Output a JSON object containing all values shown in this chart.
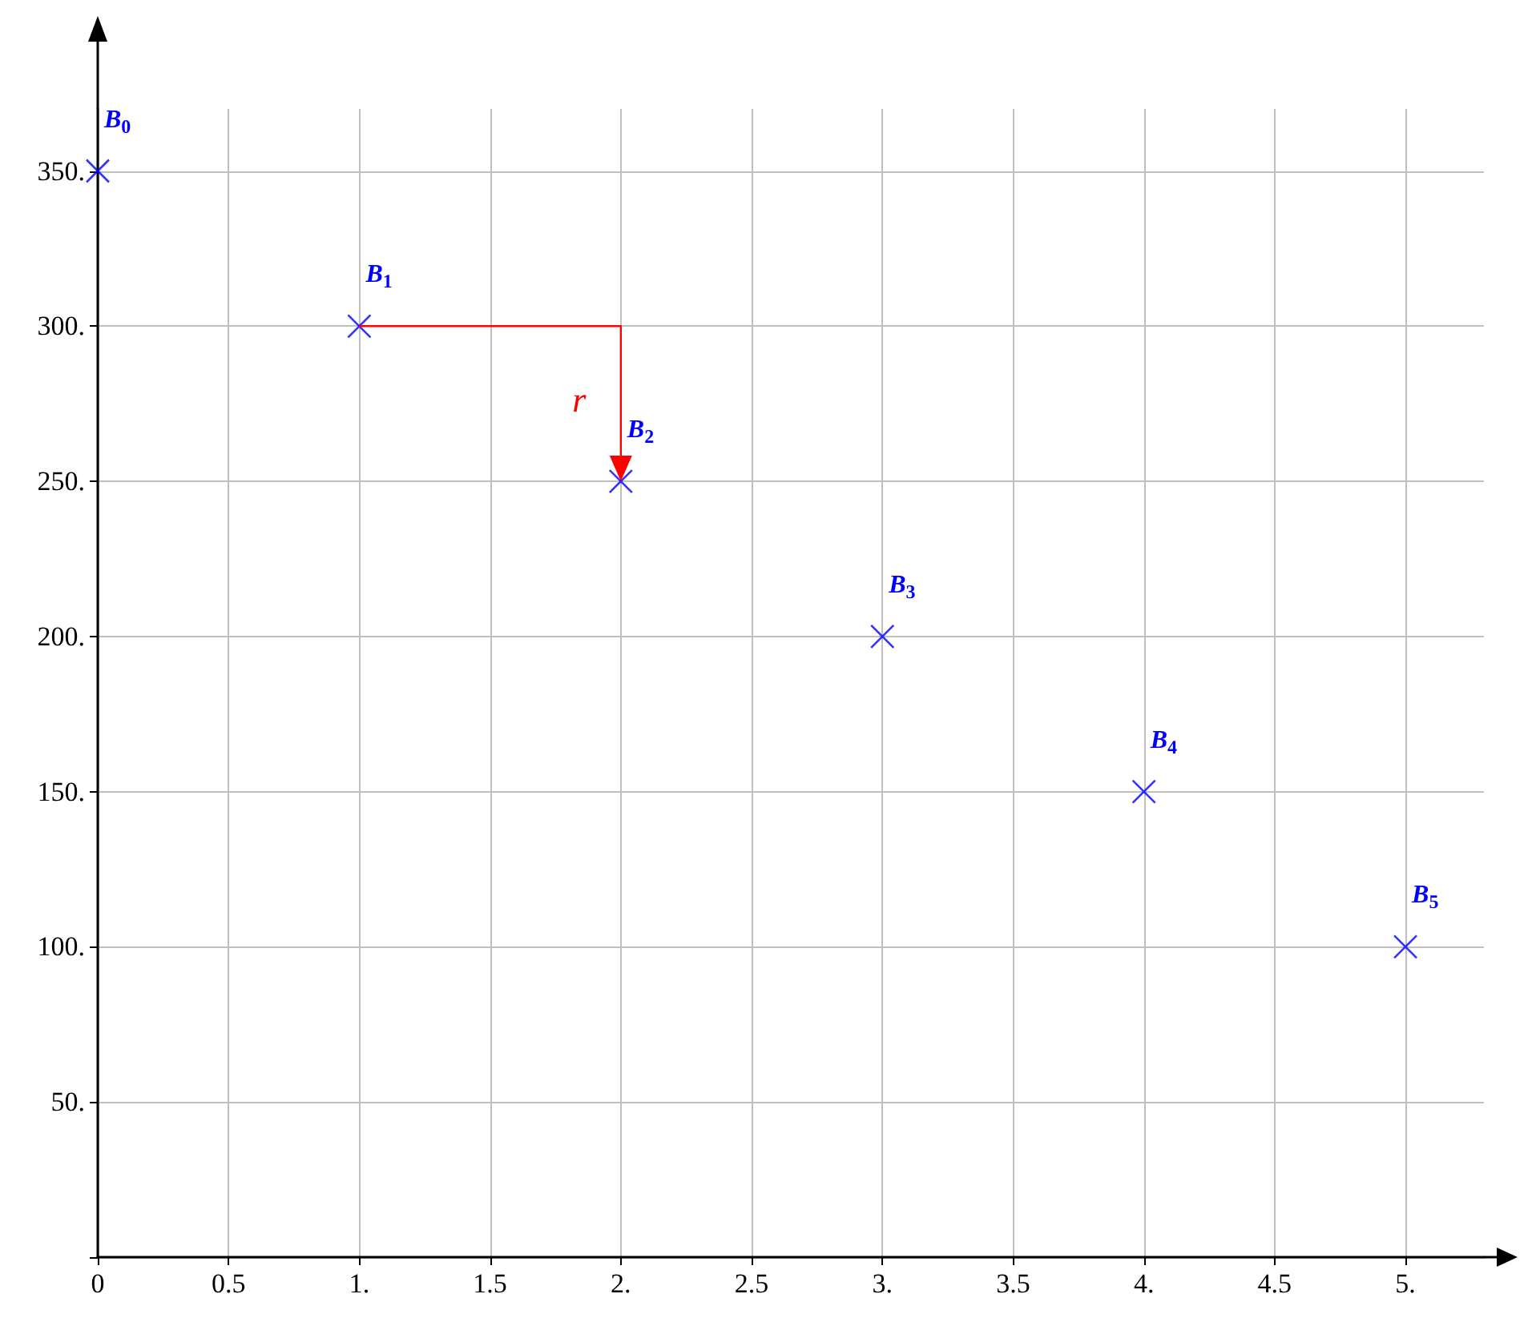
{
  "chart_data": {
    "type": "scatter",
    "x": [
      0,
      1,
      2,
      3,
      4,
      5
    ],
    "series": [
      {
        "color": "#0000ff",
        "marker": "cross",
        "values": [
          350,
          300,
          250,
          200,
          150,
          100
        ]
      }
    ],
    "annotations": [
      {
        "text": "B$_{0}$",
        "x": 0,
        "y": 350
      },
      {
        "text": "B$_{1}$",
        "x": 1,
        "y": 300
      },
      {
        "text": "B$_{2}$",
        "x": 2,
        "y": 250
      },
      {
        "text": "B$_{3}$",
        "x": 3,
        "y": 200
      },
      {
        "text": "B$_{4}$",
        "x": 4,
        "y": 150
      },
      {
        "text": "B$_{5}$",
        "x": 5,
        "y": 100
      },
      "r"
    ],
    "xlim": [
      0,
      5.3
    ],
    "ylim": [
      0,
      370
    ],
    "xticks": [
      {
        "value": 0,
        "label": "0"
      },
      0.5,
      {
        "value": 1,
        "label": "1."
      },
      1.5,
      {
        "value": 2,
        "label": "2."
      },
      2.5,
      {
        "value": 3,
        "label": "3."
      },
      3.5,
      {
        "value": 4,
        "label": "4."
      },
      4.5,
      {
        "value": 5,
        "label": "5."
      }
    ],
    "yticks": [
      {
        "value": 0,
        "label": null
      },
      {
        "value": 50,
        "label": "50."
      },
      {
        "value": 100,
        "label": "100."
      },
      {
        "value": 150,
        "label": "150."
      },
      {
        "value": 200,
        "label": "200."
      },
      {
        "value": 250,
        "label": "250."
      },
      {
        "value": 300,
        "label": "300."
      },
      {
        "value": 350,
        "label": "350."
      }
    ],
    "grid": true
  }
}
